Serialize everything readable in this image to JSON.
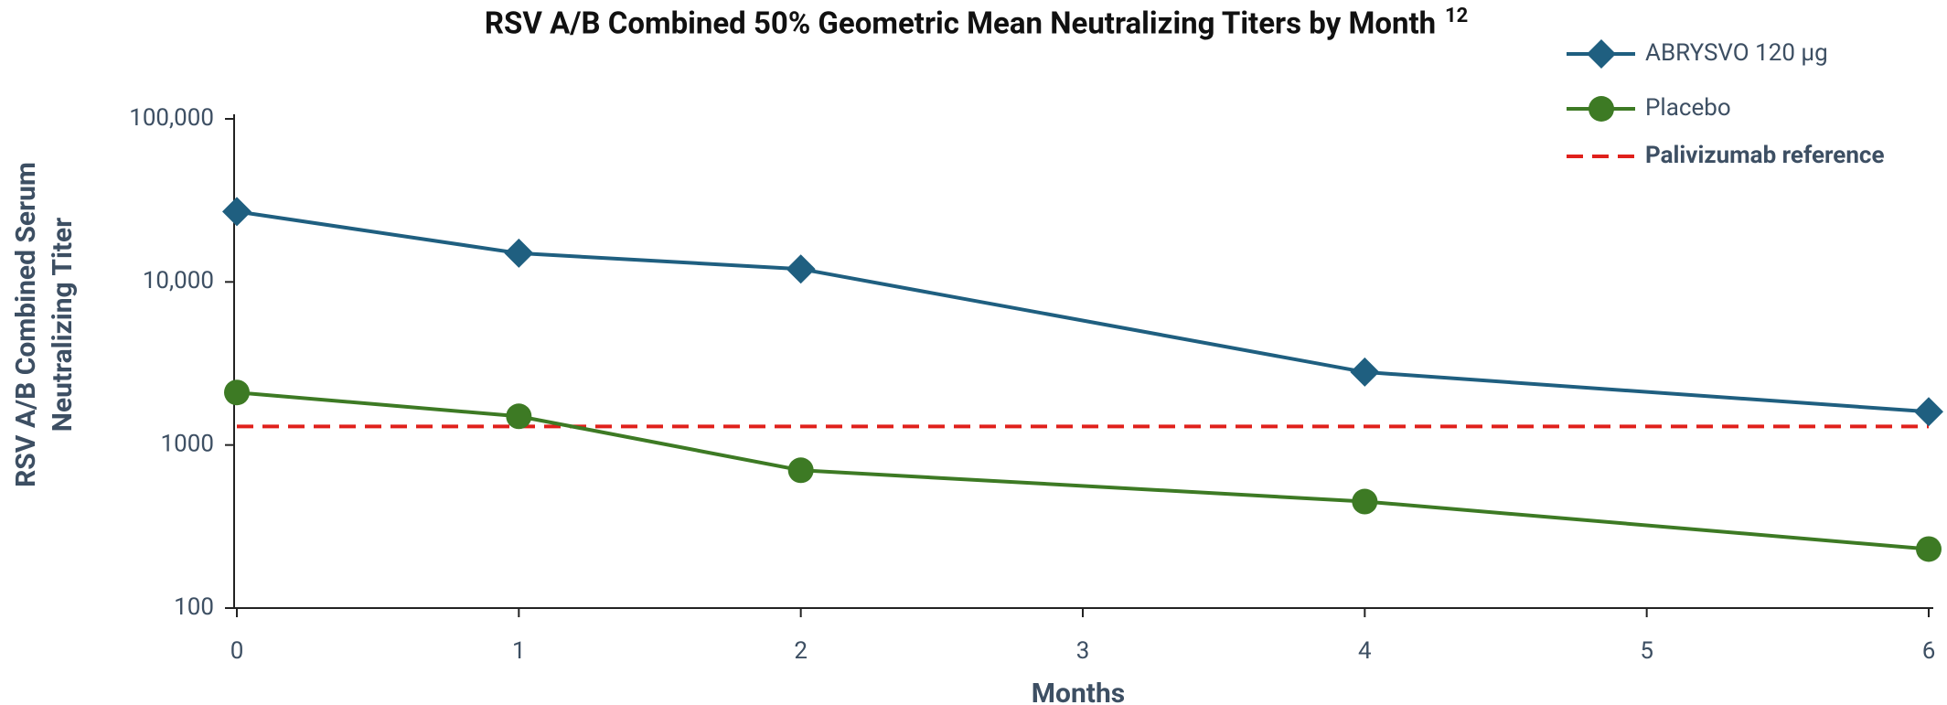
{
  "chart_data": {
    "type": "line",
    "title": "RSV A/B Combined 50% Geometric Mean Neutralizing Titers by Month",
    "title_superscript": "12",
    "xlabel": "Months",
    "ylabel": [
      "RSV A/B Combined Serum",
      "Neutralizing Titer"
    ],
    "x": [
      0,
      1,
      2,
      4,
      6
    ],
    "xlim": [
      0,
      6
    ],
    "xticks": [
      0,
      1,
      2,
      3,
      4,
      5,
      6
    ],
    "ylim": [
      100,
      100000
    ],
    "yscale": "log",
    "yticks": [
      100,
      1000,
      {
        "value": 10000,
        "label": "10,000"
      },
      {
        "value": 100000,
        "label": "100,000"
      }
    ],
    "series": [
      {
        "name": "ABRYSVO 120 µg",
        "color": "#1f5f80",
        "marker": "diamond",
        "values": [
          27000,
          15000,
          12000,
          2800,
          1600
        ]
      },
      {
        "name": "Placebo",
        "color": "#3d7a24",
        "marker": "circle",
        "values": [
          2100,
          1500,
          700,
          450,
          230
        ]
      }
    ],
    "reference_line": {
      "name": "Palivizumab reference",
      "value": 1300,
      "color": "#e0201b"
    },
    "legend": "top-right"
  }
}
